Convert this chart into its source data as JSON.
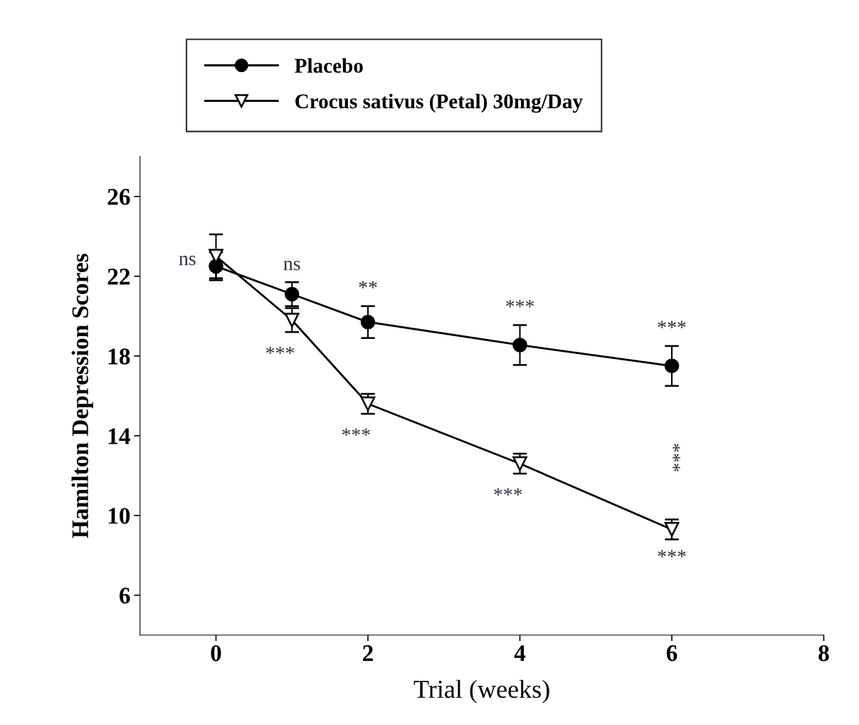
{
  "chart_data": {
    "type": "line",
    "xlabel": "Trial (weeks)",
    "ylabel": "Hamilton Depression Scores",
    "x": [
      0,
      1,
      2,
      4,
      6
    ],
    "series": [
      {
        "name": "Placebo",
        "color": "#000000",
        "marker": "circle",
        "values": [
          22.5,
          21.1,
          19.7,
          18.55,
          17.5
        ],
        "errors": [
          0.7,
          0.6,
          0.8,
          1.0,
          1.0
        ]
      },
      {
        "name": "Crocus sativus (Petal) 30mg/Day",
        "color": "#000000",
        "marker": "triangle",
        "values": [
          23.0,
          19.8,
          15.6,
          12.6,
          9.3
        ],
        "errors": [
          1.1,
          0.6,
          0.5,
          0.5,
          0.5
        ]
      }
    ],
    "xlim": [
      -1,
      8
    ],
    "xticks": [
      0,
      2,
      4,
      6,
      8
    ],
    "ylim": [
      4,
      28
    ],
    "yticks": [
      6,
      10,
      14,
      18,
      22,
      26
    ],
    "grid": false,
    "legend": "top left",
    "annotations": [
      "ns",
      "ns",
      "**",
      "***",
      "***",
      "***",
      "***",
      "***",
      "***",
      "***"
    ]
  }
}
